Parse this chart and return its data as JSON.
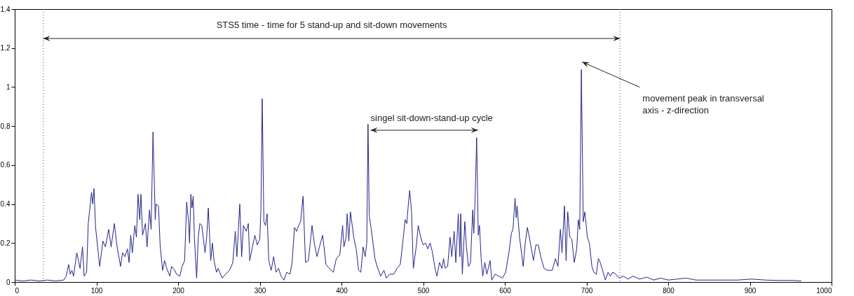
{
  "chart_data": {
    "type": "line",
    "x": [
      0,
      10,
      20,
      30,
      40,
      50,
      60,
      63,
      66,
      68,
      70,
      72,
      76,
      80,
      83,
      85,
      88,
      90,
      94,
      95.5,
      97,
      99,
      104,
      108,
      111,
      115,
      118,
      122,
      125,
      129.5,
      132,
      135,
      138,
      140,
      142,
      144,
      147,
      149,
      151,
      153,
      154.5,
      156.5,
      160,
      162,
      165,
      167,
      169.3,
      171,
      172,
      173,
      176,
      178,
      181,
      183.5,
      186,
      190,
      192,
      196,
      198,
      202,
      205,
      208,
      210.5,
      213,
      214,
      215.6,
      217,
      218.5,
      220,
      222.7,
      224.7,
      226.7,
      229,
      233,
      235,
      237,
      240,
      242,
      244,
      247,
      249,
      254,
      258,
      263,
      267,
      270,
      272,
      275.5,
      277.8,
      280,
      283.5,
      286,
      287.7,
      291,
      294,
      297,
      300,
      301.4,
      303,
      305,
      307,
      309,
      311,
      314,
      317,
      320,
      323,
      326,
      329.6,
      333,
      337,
      339.6,
      342.5,
      345,
      347.6,
      350,
      353,
      356,
      359.5,
      361.8,
      364,
      366.7,
      370,
      373,
      377,
      381,
      385,
      390,
      393.7,
      398,
      401.4,
      403,
      405.7,
      407,
      409,
      411,
      415,
      418,
      421,
      423.7,
      426.5,
      429,
      431,
      432.5,
      434,
      436.5,
      441,
      443.6,
      448,
      452,
      455,
      459,
      464,
      468,
      472,
      475,
      478,
      480,
      481.5,
      483.5,
      485.8,
      488,
      491.5,
      494,
      497,
      500,
      503,
      505.7,
      508.5,
      511,
      515,
      517,
      520,
      523,
      525,
      527,
      530,
      533,
      535,
      538,
      540,
      543,
      545,
      546,
      548,
      551,
      553,
      555.5,
      558,
      560.7,
      562,
      563.5,
      565.5,
      567.5,
      569,
      571,
      573,
      575.5,
      578,
      582,
      584,
      588,
      592.6,
      597,
      601,
      605,
      608,
      610,
      612.5,
      614,
      615,
      618,
      622.5,
      625,
      627.6,
      630,
      632.5,
      635,
      638,
      641,
      644,
      648,
      652,
      658,
      662,
      665,
      668,
      670,
      673,
      675,
      677,
      679.5,
      682,
      685,
      688,
      690,
      691.7,
      693.7,
      696,
      698,
      701,
      703.5,
      706.6,
      709,
      712,
      714.5,
      716,
      719,
      723,
      726.5,
      729,
      732,
      736,
      740,
      745,
      751,
      757,
      765,
      774,
      782,
      791,
      800,
      811,
      822,
      834,
      848,
      868,
      885,
      902,
      919,
      936,
      953,
      963
    ],
    "values": [
      0.01,
      0.005,
      0.01,
      0.005,
      0.01,
      0.005,
      0.01,
      0.03,
      0.09,
      0.04,
      0.06,
      0.03,
      0.15,
      0.07,
      0.18,
      0.03,
      0.05,
      0.3,
      0.46,
      0.4,
      0.48,
      0.28,
      0.08,
      0.21,
      0.18,
      0.27,
      0.18,
      0.3,
      0.19,
      0.08,
      0.15,
      0.13,
      0.17,
      0.1,
      0.24,
      0.15,
      0.29,
      0.23,
      0.45,
      0.32,
      0.45,
      0.24,
      0.3,
      0.18,
      0.37,
      0.27,
      0.77,
      0.5,
      0.32,
      0.4,
      0.39,
      0.19,
      0.06,
      0.11,
      0.07,
      0.03,
      0.08,
      0.06,
      0.04,
      0.03,
      0.08,
      0.11,
      0.41,
      0.3,
      0.2,
      0.45,
      0.38,
      0.44,
      0.22,
      0.02,
      0.23,
      0.3,
      0.29,
      0.15,
      0.23,
      0.38,
      0.11,
      0.2,
      0.11,
      0.05,
      0.07,
      0.02,
      0.04,
      0.06,
      0.1,
      0.26,
      0.13,
      0.4,
      0.13,
      0.29,
      0.26,
      0.3,
      0.11,
      0.18,
      0.24,
      0.19,
      0.22,
      0.37,
      0.94,
      0.31,
      0.29,
      0.35,
      0.11,
      0.06,
      0.13,
      0.05,
      0.07,
      0.03,
      0.01,
      0.05,
      0.04,
      0.1,
      0.28,
      0.26,
      0.29,
      0.31,
      0.44,
      0.1,
      0.11,
      0.2,
      0.29,
      0.2,
      0.13,
      0.18,
      0.24,
      0.09,
      0.07,
      0.05,
      0.12,
      0.14,
      0.29,
      0.18,
      0.23,
      0.35,
      0.21,
      0.36,
      0.23,
      0.17,
      0.06,
      0.05,
      0.18,
      0.13,
      0.2,
      0.81,
      0.34,
      0.27,
      0.12,
      0.08,
      0.03,
      0.06,
      0.02,
      0.04,
      0.04,
      0.07,
      0.09,
      0.2,
      0.32,
      0.3,
      0.38,
      0.47,
      0.36,
      0.07,
      0.18,
      0.29,
      0.23,
      0.19,
      0.2,
      0.17,
      0.2,
      0.16,
      0.06,
      0.03,
      0.1,
      0.07,
      0.12,
      0.07,
      0.08,
      0.23,
      0.13,
      0.26,
      0.1,
      0.35,
      0.13,
      0.35,
      0.04,
      0.31,
      0.18,
      0.08,
      0.1,
      0.37,
      0.25,
      0.41,
      0.74,
      0.24,
      0.29,
      0.12,
      0.03,
      0.1,
      0.04,
      0.11,
      0.01,
      0.04,
      0.03,
      0.02,
      0.05,
      0.15,
      0.25,
      0.27,
      0.43,
      0.33,
      0.39,
      0.23,
      0.08,
      0.2,
      0.28,
      0.23,
      0.17,
      0.11,
      0.19,
      0.19,
      0.13,
      0.07,
      0.06,
      0.06,
      0.12,
      0.08,
      0.27,
      0.15,
      0.39,
      0.11,
      0.36,
      0.23,
      0.22,
      0.1,
      0.17,
      0.32,
      0.27,
      1.09,
      0.31,
      0.36,
      0.23,
      0.2,
      0.08,
      0.05,
      0.04,
      0.12,
      0.11,
      0.07,
      0.01,
      0.05,
      0.03,
      0.05,
      0.04,
      0.02,
      0.03,
      0.015,
      0.03,
      0.015,
      0.025,
      0.01,
      0.02,
      0.01,
      0.015,
      0.02,
      0.01,
      0.01,
      0.01,
      0.01,
      0.015,
      0.01,
      0.008,
      0.008,
      0.005
    ],
    "color": "#24248c",
    "xlim": [
      0,
      1000
    ],
    "ylim": [
      0,
      1.4
    ],
    "xticks": [
      0,
      100,
      200,
      300,
      400,
      500,
      600,
      700,
      800,
      900,
      1000
    ],
    "yticks": [
      0,
      0.2,
      0.4,
      0.6,
      0.8,
      1,
      1.2,
      1.4
    ],
    "grid": false,
    "marker": "none",
    "line_style": "solid",
    "ref_lines": [
      {
        "axis": "x",
        "value": 35,
        "label": null,
        "color": "#555555",
        "line_style": "dotted"
      },
      {
        "axis": "x",
        "value": 741,
        "label": null,
        "color": "#555555",
        "line_style": "dotted"
      }
    ],
    "annotations": [
      "STS5 time - time for 5 stand-up and sit-down movements",
      {
        "text": "singel sit-down-stand-up cycle",
        "x": 434,
        "y": 0.75
      },
      {
        "text": "movement peak in transversal axis - z-direction",
        "x": 693,
        "y": 1.1
      }
    ]
  }
}
